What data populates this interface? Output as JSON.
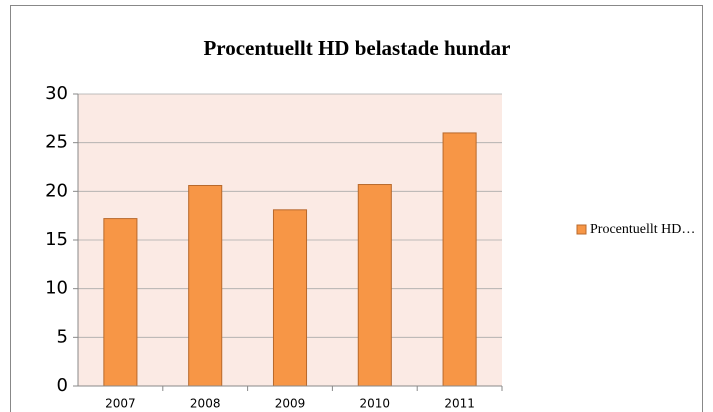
{
  "chart_data": {
    "type": "bar",
    "title": "Procentuellt HD belastade hundar",
    "categories": [
      "2007",
      "2008",
      "2009",
      "2010",
      "2011"
    ],
    "series": [
      {
        "name": "Procentuellt HD…",
        "color": "#f79646",
        "values": [
          17.2,
          20.6,
          18.1,
          20.7,
          26
        ]
      }
    ],
    "ylim": [
      0,
      30
    ],
    "yticks": [
      0,
      5,
      10,
      15,
      20,
      25,
      30
    ],
    "grid": true,
    "legend": "right"
  }
}
